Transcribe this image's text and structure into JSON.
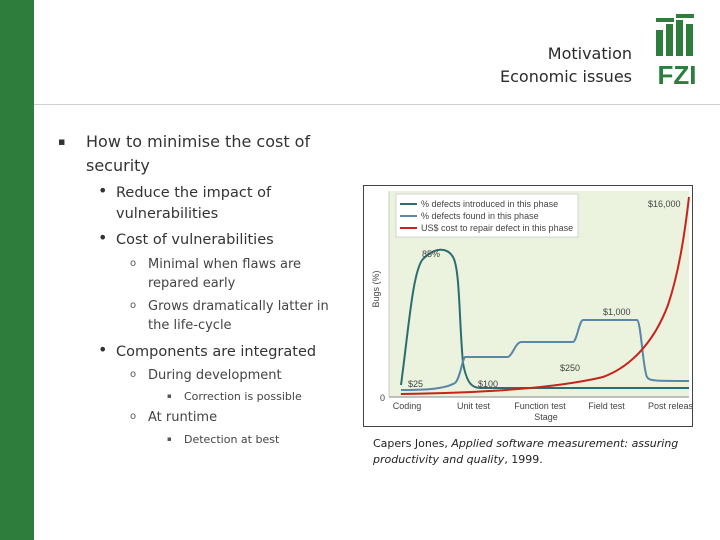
{
  "header": {
    "title_line1": "Motivation",
    "title_line2": "Economic issues",
    "logo_text": "FZI"
  },
  "colors": {
    "sidebar": "#2e7d3c",
    "introduced_line": "#2a6e72",
    "found_line": "#5a86a8",
    "cost_line": "#c8231c",
    "chart_bg": "#ebf2dd"
  },
  "bullets": {
    "b1": "How to minimise the cost of",
    "b1_cont": "security",
    "b1_1": "Reduce the impact of",
    "b1_1_cont": "vulnerabilities",
    "b1_2": "Cost of vulnerabilities",
    "b1_2_1": "Minimal when flaws are",
    "b1_2_1_cont": "repared early",
    "b1_2_2": "Grows dramatically latter in",
    "b1_2_2_cont": "the life-cycle",
    "b2": "Components are integrated",
    "b2_1": "During development",
    "b2_1_1": "Correction is possible",
    "b2_2": "At runtime",
    "b2_2_1": "Detection at best"
  },
  "chart_data": {
    "type": "line",
    "title": "",
    "xlabel": "Stage",
    "ylabel": "Bugs (%)",
    "y_origin_label": "0",
    "categories": [
      "Coding",
      "Unit test",
      "Function test",
      "Field test",
      "Post release"
    ],
    "legend_position": "top-left",
    "series": [
      {
        "name": "% defects introduced in this phase",
        "color": "#2a6e72"
      },
      {
        "name": "% defects found in this phase",
        "color": "#5a86a8"
      },
      {
        "name": "US$ cost to repair defect in this phase",
        "color": "#c8231c"
      }
    ],
    "annotations": [
      "85%",
      "$25",
      "$100",
      "$250",
      "$1,000",
      "$16,000"
    ],
    "cost_points": [
      {
        "stage": "Coding",
        "cost": 25
      },
      {
        "stage": "Unit test",
        "cost": 100
      },
      {
        "stage": "Function test",
        "cost": 250
      },
      {
        "stage": "Field test",
        "cost": 1000
      },
      {
        "stage": "Post release",
        "cost": 16000
      }
    ],
    "peak_introduced_percent": 85
  },
  "caption": {
    "author": "Capers Jones, ",
    "book": "Applied software measurement: assuring productivity and quality",
    "year": ", 1999."
  }
}
